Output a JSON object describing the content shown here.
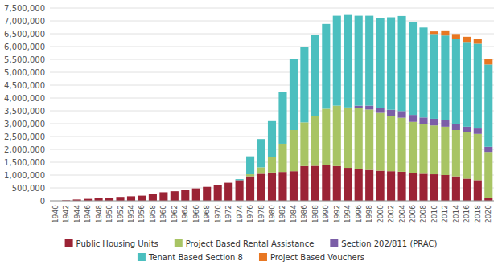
{
  "chart_data": {
    "type": "bar",
    "stacked": true,
    "grid": true,
    "categories": [
      "1940",
      "1942",
      "1944",
      "1946",
      "1948",
      "1950",
      "1952",
      "1954",
      "1956",
      "1958",
      "1960",
      "1962",
      "1964",
      "1966",
      "1968",
      "1970",
      "1972",
      "1974",
      "1976",
      "1978",
      "1980",
      "1982",
      "1984",
      "1986",
      "1988",
      "1990",
      "1992",
      "1994",
      "1996",
      "1998",
      "2000",
      "2002",
      "2004",
      "2006",
      "2008",
      "2010",
      "2012",
      "2014",
      "2016",
      "2018",
      "2020"
    ],
    "series": [
      {
        "name": "Public Housing Units",
        "color": "#9B2335",
        "values": [
          0,
          20000,
          50000,
          75000,
          100000,
          120000,
          150000,
          175000,
          200000,
          250000,
          330000,
          370000,
          430000,
          480000,
          540000,
          620000,
          700000,
          800000,
          950000,
          1050000,
          1100000,
          1120000,
          1150000,
          1350000,
          1360000,
          1380000,
          1350000,
          1280000,
          1240000,
          1200000,
          1170000,
          1150000,
          1130000,
          1090000,
          1050000,
          1030000,
          1000000,
          950000,
          860000,
          800000,
          100000
        ]
      },
      {
        "name": "Project Based Rental Assistance",
        "color": "#A8C464",
        "values": [
          0,
          0,
          0,
          0,
          0,
          0,
          0,
          0,
          0,
          0,
          0,
          0,
          0,
          0,
          0,
          0,
          0,
          0,
          80000,
          250000,
          600000,
          1100000,
          1600000,
          1700000,
          1950000,
          2200000,
          2350000,
          2350000,
          2380000,
          2350000,
          2250000,
          2150000,
          2100000,
          1980000,
          1920000,
          1900000,
          1880000,
          1800000,
          1800000,
          1800000,
          1800000
        ]
      },
      {
        "name": "Section 202/811 (PRAC)",
        "color": "#7B5EA7",
        "values": [
          0,
          0,
          0,
          0,
          0,
          0,
          0,
          0,
          0,
          0,
          0,
          0,
          0,
          0,
          0,
          0,
          0,
          0,
          0,
          0,
          0,
          0,
          0,
          0,
          0,
          0,
          0,
          0,
          80000,
          150000,
          200000,
          240000,
          260000,
          270000,
          270000,
          260000,
          250000,
          240000,
          220000,
          210000,
          200000
        ]
      },
      {
        "name": "Tenant Based Section 8",
        "color": "#4BBFBF",
        "values": [
          0,
          0,
          0,
          0,
          0,
          0,
          0,
          0,
          0,
          0,
          0,
          0,
          0,
          0,
          0,
          0,
          0,
          40000,
          700000,
          1100000,
          1400000,
          2000000,
          2750000,
          2950000,
          3150000,
          3300000,
          3500000,
          3600000,
          3500000,
          3500000,
          3500000,
          3600000,
          3700000,
          3600000,
          3500000,
          3300000,
          3300000,
          3300000,
          3300000,
          3300000,
          3200000
        ]
      },
      {
        "name": "Project Based Vouchers",
        "color": "#E87722",
        "values": [
          0,
          0,
          0,
          0,
          0,
          0,
          0,
          0,
          0,
          0,
          0,
          0,
          0,
          0,
          0,
          0,
          0,
          0,
          0,
          0,
          0,
          0,
          0,
          0,
          0,
          0,
          0,
          0,
          0,
          0,
          0,
          0,
          0,
          0,
          0,
          100000,
          200000,
          200000,
          200000,
          200000,
          200000
        ]
      }
    ],
    "ylim": [
      0,
      7500000
    ],
    "yticks": [
      0,
      {
        "value": 500000,
        "label": "500,000"
      },
      {
        "value": 1000000,
        "label": "1,000,000"
      },
      {
        "value": 1500000,
        "label": "1,500,000"
      },
      {
        "value": 2000000,
        "label": "2,000,000"
      },
      {
        "value": 2500000,
        "label": "2,500,000"
      },
      {
        "value": 3000000,
        "label": "3,000,000"
      },
      {
        "value": 3500000,
        "label": "3,500,000"
      },
      {
        "value": 4000000,
        "label": "4,000,000"
      },
      {
        "value": 4500000,
        "label": "4,500,000"
      },
      {
        "value": 5000000,
        "label": "5,000,000"
      },
      {
        "value": 5500000,
        "label": "5,500,000"
      },
      {
        "value": 6000000,
        "label": "6,000,000"
      },
      {
        "value": 6500000,
        "label": "6,500,000"
      },
      {
        "value": 7000000,
        "label": "7,000,000"
      },
      {
        "value": 7500000,
        "label": "7,500,000"
      }
    ]
  }
}
